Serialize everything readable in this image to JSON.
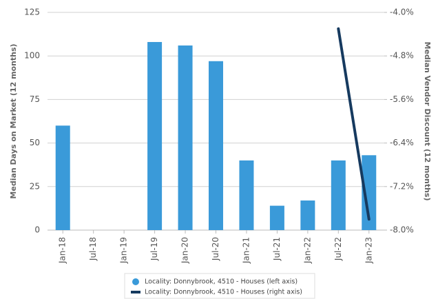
{
  "chart_data": {
    "type": "bar",
    "y_label": "Median Days on Market (12 months)",
    "y2_label": "Median Vendor Discount (12 months)",
    "categories": [
      "Jan-18",
      "Jul-18",
      "Jan-19",
      "Jul-19",
      "Jan-20",
      "Jul-20",
      "Jan-21",
      "Jul-21",
      "Jan-22",
      "Jul-22",
      "Jan-23"
    ],
    "series": [
      {
        "name": "Locality: Donnybrook, 4510 - Houses (left axis)",
        "type": "bar",
        "color": "#3a9ad9",
        "values": [
          60,
          null,
          null,
          108,
          106,
          97,
          40,
          14,
          17,
          40,
          43
        ]
      },
      {
        "name": "Locality: Donnybrook, 4510 - Houses (right axis)",
        "type": "line",
        "axis": "y2",
        "color": "#163a5f",
        "values": [
          null,
          null,
          null,
          null,
          null,
          null,
          null,
          null,
          null,
          -4.3,
          -7.8
        ]
      }
    ],
    "ylim": [
      0,
      125
    ],
    "yticks": [
      0,
      25,
      50,
      75,
      100,
      125
    ],
    "y2lim": [
      -8,
      -4
    ],
    "y2ticks": [
      {
        "value": -8,
        "label": "-8.0%"
      },
      {
        "value": -7.2,
        "label": "-7.2%"
      },
      {
        "value": -6.4,
        "label": "-6.4%"
      },
      {
        "value": -5.6,
        "label": "-5.6%"
      },
      {
        "value": -4.8,
        "label": "-4.8%"
      },
      {
        "value": -4,
        "label": "-4.0%"
      }
    ],
    "grid": true,
    "legend": "bottom"
  }
}
